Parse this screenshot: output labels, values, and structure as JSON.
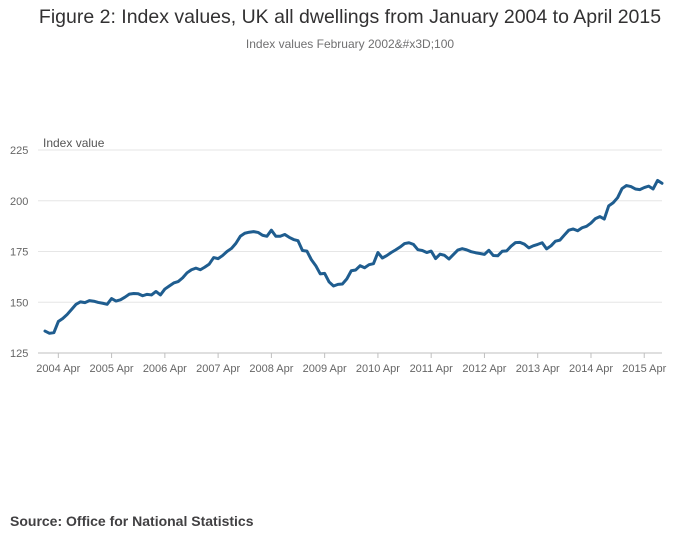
{
  "header": {
    "title": "Figure 2: Index values, UK all dwellings from January 2004 to April 2015",
    "subtitle": "Index values February 2002&#x3D;100"
  },
  "footer": {
    "source": "Source: Office for National Statistics"
  },
  "colors": {
    "line": "#1f5d8f",
    "grid": "#e6e6e6",
    "axis": "#bfbfbf",
    "tick_text": "#666666"
  },
  "chart_data": {
    "type": "line",
    "title": "Figure 2: Index values, UK all dwellings from January 2004 to April 2015",
    "subtitle": "Index values February 2002&#x3D;100",
    "ylabel": "Index value",
    "xlabel": "",
    "ylim": [
      125,
      225
    ],
    "yticks": [
      125,
      150,
      175,
      200,
      225
    ],
    "x_start": "2004-01",
    "x_end": "2015-04",
    "xtick_labels": [
      "2004 Apr",
      "2005 Apr",
      "2006 Apr",
      "2007 Apr",
      "2008 Apr",
      "2009 Apr",
      "2010 Apr",
      "2011 Apr",
      "2012 Apr",
      "2013 Apr",
      "2014 Apr",
      "2015 Apr"
    ],
    "grid": true,
    "series": [
      {
        "name": "UK all dwellings",
        "values": [
          135.8,
          134.7,
          135.0,
          140.5,
          142.0,
          144.0,
          146.5,
          149.0,
          150.2,
          149.8,
          150.8,
          150.5,
          149.9,
          149.5,
          149.0,
          151.8,
          150.6,
          151.2,
          152.5,
          154.0,
          154.3,
          154.2,
          153.2,
          153.9,
          153.6,
          155.3,
          153.6,
          156.5,
          158.0,
          159.5,
          160.2,
          162.0,
          164.5,
          166.0,
          166.8,
          166.0,
          167.3,
          168.8,
          172.0,
          171.5,
          173.0,
          175.0,
          176.5,
          179.0,
          182.5,
          184.0,
          184.5,
          184.8,
          184.4,
          183.0,
          182.5,
          185.5,
          182.5,
          182.5,
          183.4,
          182.0,
          180.9,
          180.3,
          175.5,
          175.2,
          171.0,
          168.0,
          164.0,
          164.2,
          160.0,
          158.0,
          158.8,
          159.0,
          161.5,
          165.5,
          165.9,
          168.0,
          167.0,
          168.5,
          169.0,
          174.5,
          171.8,
          173.0,
          174.5,
          175.8,
          177.2,
          178.9,
          179.3,
          178.5,
          175.9,
          175.5,
          174.5,
          175.2,
          171.5,
          173.7,
          173.1,
          171.3,
          173.5,
          175.7,
          176.4,
          175.8,
          174.9,
          174.4,
          174.0,
          173.6,
          175.6,
          173.0,
          172.9,
          175.1,
          175.3,
          177.6,
          179.4,
          179.5,
          178.6,
          176.8,
          177.8,
          178.5,
          179.3,
          176.3,
          177.8,
          180.1,
          180.6,
          183.1,
          185.5,
          186.1,
          185.2,
          186.7,
          187.4,
          189.0,
          191.2,
          192.2,
          191.0,
          197.5,
          199.0,
          201.5,
          206.0,
          207.5,
          207.0,
          205.8,
          205.5,
          206.5,
          207.2,
          205.8,
          210.0,
          208.6
        ]
      }
    ]
  }
}
